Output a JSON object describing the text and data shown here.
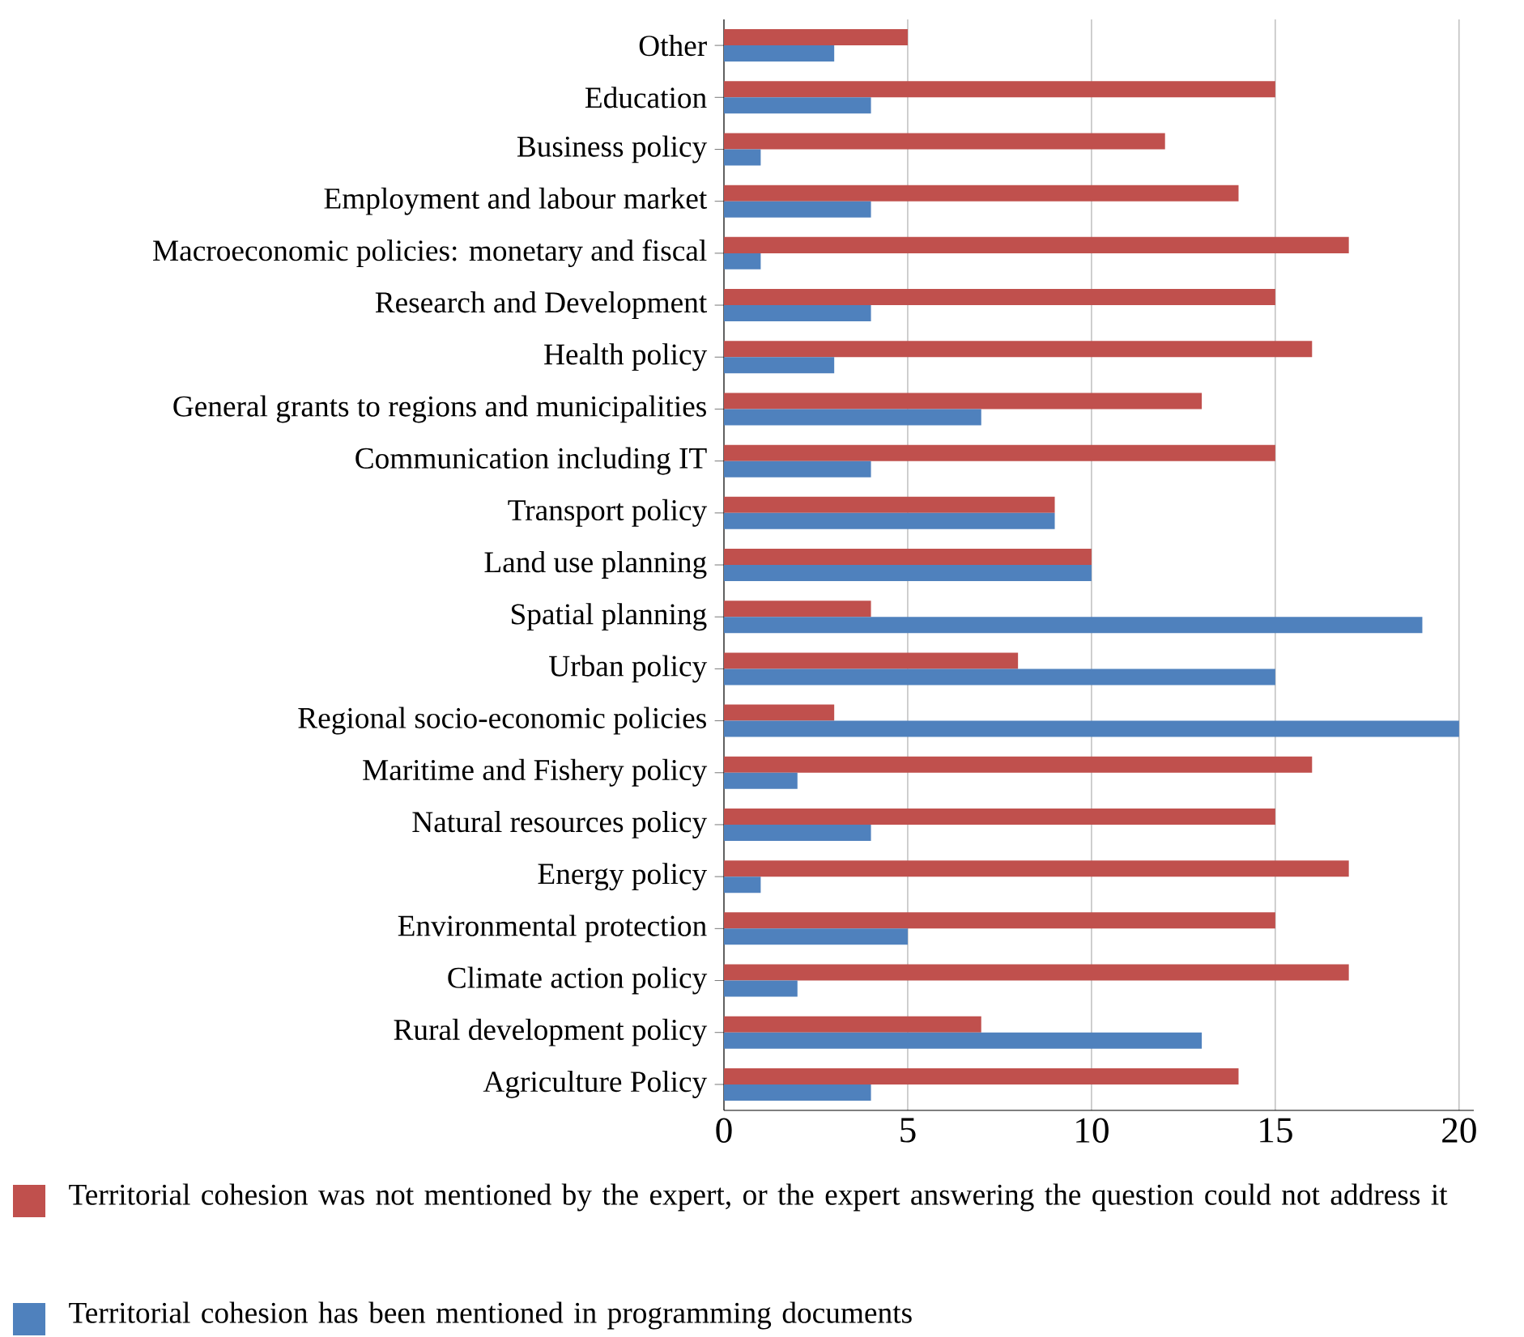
{
  "chart_data": {
    "type": "bar",
    "orientation": "horizontal",
    "categories": [
      "Other",
      "Education",
      "Business policy",
      "Employment and labour market",
      "Macroeconomic policies: monetary and fiscal",
      "Research and Development",
      "Health policy",
      "General grants to regions and municipalities",
      "Communication including IT",
      "Transport policy",
      "Land use planning",
      "Spatial planning",
      "Urban policy",
      "Regional socio-economic policies",
      "Maritime and Fishery policy",
      "Natural resources policy",
      "Energy policy",
      "Environmental protection",
      "Climate action policy",
      "Rural development policy",
      "Agriculture Policy"
    ],
    "series": [
      {
        "name": "Territorial cohesion was not mentioned by the expert, or the expert answering the question could not address it",
        "color": "#c0504d",
        "values": [
          5,
          15,
          12,
          14,
          17,
          15,
          16,
          13,
          15,
          9,
          10,
          4,
          8,
          3,
          16,
          15,
          17,
          15,
          17,
          7,
          14
        ]
      },
      {
        "name": "Territorial cohesion has been mentioned in programming documents",
        "color": "#4f81bd",
        "values": [
          3,
          4,
          1,
          4,
          1,
          4,
          3,
          7,
          4,
          9,
          10,
          19,
          15,
          20,
          2,
          4,
          1,
          5,
          2,
          13,
          4
        ]
      }
    ],
    "xlim": [
      0,
      20.4
    ],
    "xticks": [
      0,
      5,
      10,
      15,
      20
    ],
    "grid": "x",
    "legend": "bottom"
  }
}
